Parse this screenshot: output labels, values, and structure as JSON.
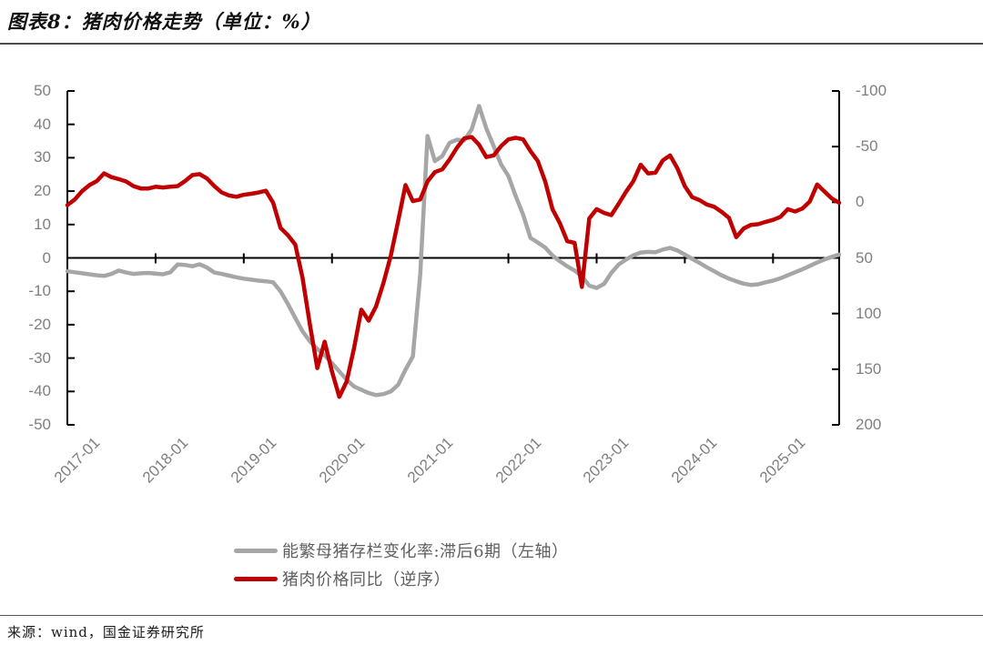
{
  "title": "图表8：猪肉价格走势（单位：%）",
  "source": "来源：wind，国金证券研究所",
  "colors": {
    "axis": "#000000",
    "tick_label": "#7F7F7F",
    "legend_text": "#5F5F5F",
    "gray_series": "#A6A6A6",
    "red_series": "#C00000"
  },
  "chart_data": {
    "type": "line",
    "title": "猪肉价格走势（单位：%）",
    "x": {
      "start": "2017-01",
      "end": "2025-10",
      "freq": "monthly",
      "tick_labels": [
        "2017-01",
        "2018-01",
        "2019-01",
        "2020-01",
        "2021-01",
        "2022-01",
        "2023-01",
        "2024-01",
        "2025-01"
      ]
    },
    "left_axis": {
      "min": -50,
      "max": 50,
      "tick_step": 10,
      "tick_labels": [
        "50",
        "40",
        "30",
        "20",
        "10",
        "0",
        "-10",
        "-20",
        "-30",
        "-40",
        "-50"
      ]
    },
    "right_axis": {
      "min": -100,
      "max": 200,
      "tick_step": 50,
      "inverted": true,
      "tick_labels": [
        "-100",
        "-50",
        "0",
        "50",
        "100",
        "150",
        "200"
      ]
    },
    "grid": false,
    "legend_position": "bottom",
    "series": [
      {
        "name": "能繁母猪存栏变化率:滞后6期（左轴）",
        "axis": "left",
        "color": "#A6A6A6",
        "values": [
          -4.0,
          -4.3,
          -4.6,
          -4.9,
          -5.2,
          -5.4,
          -4.8,
          -3.8,
          -4.4,
          -4.8,
          -4.6,
          -4.5,
          -4.7,
          -4.9,
          -4.3,
          -2.0,
          -2.1,
          -2.5,
          -1.9,
          -2.9,
          -4.4,
          -4.8,
          -5.3,
          -5.8,
          -6.2,
          -6.5,
          -6.8,
          -7.0,
          -7.3,
          -10.0,
          -13.8,
          -18.0,
          -22.0,
          -25.0,
          -27.3,
          -29.2,
          -31.5,
          -34.0,
          -36.5,
          -38.5,
          -39.5,
          -40.5,
          -41.1,
          -40.8,
          -40.0,
          -38.0,
          -33.5,
          -29.5,
          -5.0,
          36.5,
          29.0,
          30.5,
          34.5,
          35.4,
          35.2,
          38.5,
          45.5,
          38.8,
          33.5,
          28.0,
          24.5,
          18.5,
          13.0,
          6.0,
          4.6,
          3.1,
          0.7,
          -1.0,
          -2.5,
          -3.8,
          -5.5,
          -8.3,
          -9.0,
          -7.8,
          -4.5,
          -2.0,
          -0.5,
          0.8,
          1.6,
          1.8,
          1.7,
          2.5,
          3.0,
          2.2,
          1.0,
          -0.3,
          -1.5,
          -2.8,
          -4.0,
          -5.2,
          -6.2,
          -7.0,
          -7.7,
          -8.1,
          -7.9,
          -7.3,
          -6.8,
          -6.1,
          -5.2,
          -4.3,
          -3.4,
          -2.4,
          -1.4,
          -0.5,
          0.3,
          1.0
        ]
      },
      {
        "name": "猪肉价格同比（逆序）",
        "axis": "right",
        "color": "#C00000",
        "values": [
          2.6,
          -2.5,
          -10.0,
          -15.4,
          -19.0,
          -25.9,
          -22.6,
          -20.8,
          -18.7,
          -14.5,
          -12.4,
          -12.4,
          -13.9,
          -13.3,
          -13.9,
          -14.5,
          -19.0,
          -24.4,
          -25.3,
          -21.4,
          -14.5,
          -8.8,
          -6.1,
          -4.9,
          -6.7,
          -7.6,
          -8.8,
          -10.3,
          0.5,
          23.0,
          29.6,
          38.0,
          68.0,
          110.0,
          149.0,
          125.3,
          152.0,
          174.8,
          161.0,
          131.0,
          96.5,
          106.4,
          93.5,
          72.5,
          47.9,
          17.0,
          -15.4,
          -1.0,
          -2.5,
          -18.7,
          -27.1,
          -29.5,
          -38.5,
          -49.0,
          -57.4,
          -58.6,
          -51.7,
          -40.6,
          -42.1,
          -50.5,
          -56.5,
          -58.0,
          -56.5,
          -46.0,
          -37.0,
          -18.7,
          6.2,
          18.8,
          35.0,
          36.5,
          76.1,
          14.6,
          6.2,
          9.5,
          11.6,
          1.4,
          -9.4,
          -19.0,
          -33.7,
          -25.9,
          -26.5,
          -37.6,
          -42.1,
          -30.4,
          -14.5,
          -4.6,
          -1.9,
          2.0,
          4.1,
          8.6,
          14.0,
          31.4,
          23.6,
          20.3,
          19.7,
          17.6,
          15.8,
          13.1,
          6.2,
          8.3,
          5.6,
          -0.7,
          -16.0,
          -9.7,
          -3.4,
          0.5
        ]
      }
    ]
  }
}
